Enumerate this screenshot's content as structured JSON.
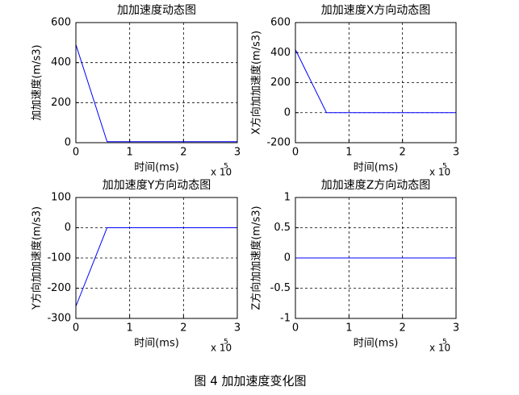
{
  "chart_data": [
    {
      "type": "line",
      "title": "加加速度动态图",
      "xlabel": "时间(ms)",
      "ylabel": "加加速度(m/s3)",
      "x_scale_base": "x 10",
      "x_scale_exponent": "5",
      "x": [
        0,
        0.58,
        3
      ],
      "series": [
        {
          "color": "#0000ff",
          "values": [
            490,
            5,
            5
          ]
        }
      ],
      "xlim": [
        0,
        3
      ],
      "xticks": [
        0,
        1,
        2,
        3
      ],
      "ylim": [
        0,
        600
      ],
      "yticks": [
        0,
        200,
        400,
        600
      ],
      "grid": true
    },
    {
      "type": "line",
      "title": "加加速度X方向动态图",
      "xlabel": "时间(ms)",
      "ylabel": "X方向加加速度(m/s3)",
      "x_scale_base": "x 10",
      "x_scale_exponent": "5",
      "x": [
        0,
        0.58,
        3
      ],
      "series": [
        {
          "color": "#0000ff",
          "values": [
            420,
            0,
            0
          ]
        }
      ],
      "xlim": [
        0,
        3
      ],
      "xticks": [
        0,
        1,
        2,
        3
      ],
      "ylim": [
        -200,
        600
      ],
      "yticks": [
        -200,
        0,
        200,
        400,
        600
      ],
      "grid": true
    },
    {
      "type": "line",
      "title": "加加速度Y方向动态图",
      "xlabel": "时间(ms)",
      "ylabel": "Y方向加加速度(m/s3)",
      "x_scale_base": "x 10",
      "x_scale_exponent": "5",
      "x": [
        0,
        0.58,
        3
      ],
      "series": [
        {
          "color": "#0000ff",
          "values": [
            -260,
            0,
            0
          ]
        }
      ],
      "xlim": [
        0,
        3
      ],
      "xticks": [
        0,
        1,
        2,
        3
      ],
      "ylim": [
        -300,
        100
      ],
      "yticks": [
        -300,
        -200,
        -100,
        0,
        100
      ],
      "grid": true
    },
    {
      "type": "line",
      "title": "加加速度Z方向动态图",
      "xlabel": "时间(ms)",
      "ylabel": "Z方向加加速度(m/s3)",
      "x_scale_base": "x 10",
      "x_scale_exponent": "5",
      "x": [
        0,
        3
      ],
      "series": [
        {
          "color": "#0000ff",
          "values": [
            0,
            0
          ]
        }
      ],
      "xlim": [
        0,
        3
      ],
      "xticks": [
        0,
        1,
        2,
        3
      ],
      "ylim": [
        -1,
        1
      ],
      "yticks": [
        -1,
        -0.5,
        0,
        0.5,
        1
      ],
      "grid": true
    }
  ],
  "caption": "图 4  加加速度变化图"
}
